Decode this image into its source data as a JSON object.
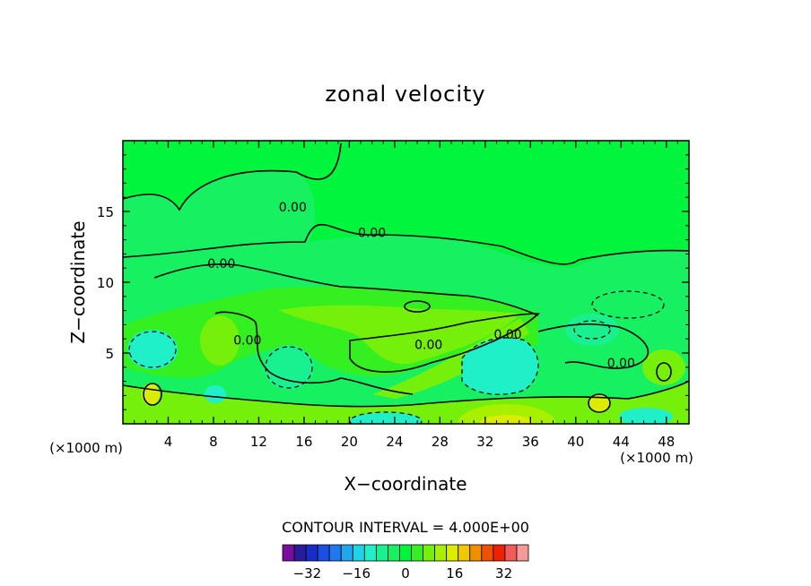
{
  "chart_data": {
    "type": "heatmap",
    "title": "zonal velocity",
    "xlabel": "X−coordinate",
    "ylabel": "Z−coordinate",
    "x_unit_left": "(×1000 m)",
    "x_unit_right": "(×1000 m)",
    "xlim": [
      0,
      50
    ],
    "ylim": [
      0,
      20
    ],
    "xticks": [
      4,
      8,
      12,
      16,
      20,
      24,
      28,
      32,
      36,
      40,
      44,
      48
    ],
    "yticks": [
      5,
      10,
      15
    ],
    "contour_interval_text": "CONTOUR INTERVAL = 4.000E+00",
    "contour_labels": [
      {
        "text": "0.00",
        "x": 15,
        "y": 15.0
      },
      {
        "text": "0.00",
        "x": 22,
        "y": 13.2
      },
      {
        "text": "0.00",
        "x": 8.7,
        "y": 11.0
      },
      {
        "text": "0.00",
        "x": 11,
        "y": 5.6
      },
      {
        "text": "0.00",
        "x": 27,
        "y": 5.3
      },
      {
        "text": "0.00",
        "x": 34,
        "y": 6.0
      },
      {
        "text": "0.00",
        "x": 44,
        "y": 4.0
      }
    ],
    "regions": [
      {
        "value": 0,
        "x": 20,
        "y": 16
      },
      {
        "value": -4,
        "x": 8,
        "y": 15
      },
      {
        "value": -8,
        "x": 33,
        "y": 4.5
      },
      {
        "value": 4,
        "x": 26,
        "y": 4
      },
      {
        "value": 8,
        "x": 34,
        "y": 1
      },
      {
        "value": 12,
        "x": 34,
        "y": 0.3
      },
      {
        "value": -8,
        "x": 42,
        "y": 6
      }
    ],
    "colorbar": {
      "levels": [
        -40,
        -36,
        -32,
        -28,
        -24,
        -20,
        -16,
        -12,
        -8,
        -4,
        0,
        4,
        8,
        12,
        16,
        20,
        24,
        28,
        32,
        36,
        40
      ],
      "colors": [
        "#7a0d9e",
        "#2a1a9c",
        "#1a2cc8",
        "#1c4ee6",
        "#1f78ee",
        "#21a6ee",
        "#1fd2e8",
        "#1ff0c8",
        "#19f090",
        "#17f060",
        "#00f53c",
        "#34f020",
        "#74f00a",
        "#a8f000",
        "#dcec00",
        "#f0c800",
        "#f09000",
        "#ee5200",
        "#ec2200",
        "#f05c5c",
        "#f49a9a"
      ],
      "tick_labels": [
        "−32",
        "−16",
        "0",
        "16",
        "32"
      ],
      "tick_values": [
        -32,
        -16,
        0,
        16,
        32
      ]
    }
  }
}
